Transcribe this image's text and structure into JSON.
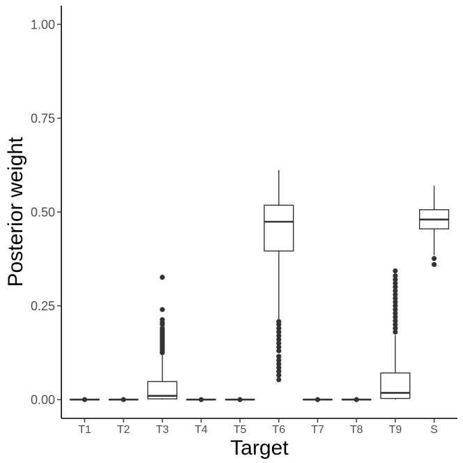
{
  "chart_data": {
    "type": "boxplot",
    "xlabel": "Target",
    "ylabel": "Posterior weight",
    "ylim": [
      -0.05,
      1.05
    ],
    "y_ticks": [
      0.0,
      0.25,
      0.5,
      0.75,
      1.0
    ],
    "y_tick_labels": [
      "0.00",
      "0.25",
      "0.50",
      "0.75",
      "1.00"
    ],
    "grid": false,
    "categories": [
      "T1",
      "T2",
      "T3",
      "T4",
      "T5",
      "T6",
      "T7",
      "T8",
      "T9",
      "S"
    ],
    "boxes": [
      {
        "label": "T1",
        "whisker_low": 0.0,
        "q1": 0.0,
        "median": 0.0,
        "q3": 0.0,
        "whisker_high": 0.0,
        "outliers": [
          0.0
        ]
      },
      {
        "label": "T2",
        "whisker_low": 0.0,
        "q1": 0.0,
        "median": 0.0,
        "q3": 0.0,
        "whisker_high": 0.0,
        "outliers": [
          0.0
        ]
      },
      {
        "label": "T3",
        "whisker_low": 0.0,
        "q1": 0.002,
        "median": 0.01,
        "q3": 0.048,
        "whisker_high": 0.118,
        "outliers": [
          0.125,
          0.13,
          0.135,
          0.14,
          0.145,
          0.15,
          0.155,
          0.16,
          0.165,
          0.17,
          0.175,
          0.18,
          0.185,
          0.19,
          0.2,
          0.205,
          0.213,
          0.24,
          0.326
        ]
      },
      {
        "label": "T4",
        "whisker_low": 0.0,
        "q1": 0.0,
        "median": 0.0,
        "q3": 0.0,
        "whisker_high": 0.0,
        "outliers": [
          0.0
        ]
      },
      {
        "label": "T5",
        "whisker_low": 0.0,
        "q1": 0.0,
        "median": 0.0,
        "q3": 0.0,
        "whisker_high": 0.0,
        "outliers": [
          0.0
        ]
      },
      {
        "label": "T6",
        "whisker_low": 0.213,
        "q1": 0.396,
        "median": 0.474,
        "q3": 0.518,
        "whisker_high": 0.612,
        "outliers": [
          0.053,
          0.065,
          0.075,
          0.085,
          0.095,
          0.105,
          0.115,
          0.13,
          0.14,
          0.15,
          0.16,
          0.17,
          0.18,
          0.19,
          0.2,
          0.208
        ]
      },
      {
        "label": "T7",
        "whisker_low": 0.0,
        "q1": 0.0,
        "median": 0.0,
        "q3": 0.0,
        "whisker_high": 0.0,
        "outliers": [
          0.0
        ]
      },
      {
        "label": "T8",
        "whisker_low": 0.0,
        "q1": 0.0,
        "median": 0.0,
        "q3": 0.0,
        "whisker_high": 0.0,
        "outliers": [
          0.0
        ]
      },
      {
        "label": "T9",
        "whisker_low": 0.0,
        "q1": 0.003,
        "median": 0.018,
        "q3": 0.071,
        "whisker_high": 0.172,
        "outliers": [
          0.18,
          0.19,
          0.2,
          0.21,
          0.22,
          0.23,
          0.24,
          0.25,
          0.26,
          0.27,
          0.28,
          0.29,
          0.3,
          0.31,
          0.32,
          0.33,
          0.343
        ]
      },
      {
        "label": "S",
        "whisker_low": 0.385,
        "q1": 0.455,
        "median": 0.48,
        "q3": 0.506,
        "whisker_high": 0.57,
        "outliers": [
          0.36,
          0.376
        ]
      }
    ]
  }
}
